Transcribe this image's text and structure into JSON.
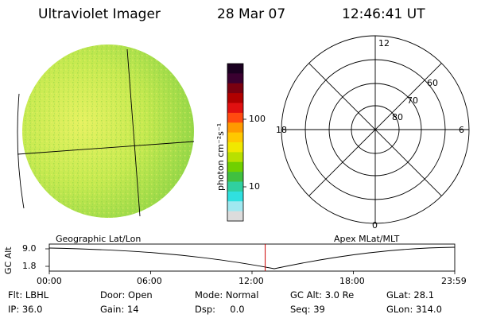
{
  "header": {
    "instrument": "Ultraviolet Imager",
    "date": "28 Mar 07",
    "time": "12:46:41 UT"
  },
  "colorbar": {
    "label": "photon cm⁻²s⁻¹",
    "ticks": [
      "100",
      "10"
    ],
    "colors": [
      "#1a0020",
      "#3a0030",
      "#7a0010",
      "#b00000",
      "#e01010",
      "#ff4a10",
      "#ff9a00",
      "#ffc800",
      "#f0e800",
      "#b8e000",
      "#70d000",
      "#40c040",
      "#30d0a0",
      "#30e0e0",
      "#a0e8f0",
      "#dcdcdc"
    ]
  },
  "polar_plot": {
    "labels": {
      "top": "12",
      "left": "18",
      "right": "6",
      "bottom": "0"
    },
    "lat_labels": [
      "60",
      "70",
      "80"
    ]
  },
  "timeline": {
    "left_title": "Geographic Lat/Lon",
    "right_title": "Apex MLat/MLT",
    "axis_label": "GC Alt",
    "y_ticks": [
      "9.0",
      "1.8"
    ],
    "x_ticks": [
      "00:00",
      "06:00",
      "12:00",
      "18:00",
      "23:59"
    ],
    "current_marker_hours": 12.78
  },
  "stats": {
    "filter": "Flt: LBHL",
    "door": "Door: Open",
    "mode": "Mode: Normal",
    "gc_alt": "GC Alt: 3.0 Re",
    "glat": "GLat:  28.1",
    "ip": "IP: 36.0",
    "gain": "Gain: 14",
    "dsp": "Dsp:     0.0",
    "seq": "Seq: 39",
    "glon": "GLon: 314.0"
  },
  "colors": {
    "earth_main": "#c8ec50",
    "earth_bright": "#e0f060",
    "earth_dark": "#98d848",
    "marker": "#cc0000"
  }
}
